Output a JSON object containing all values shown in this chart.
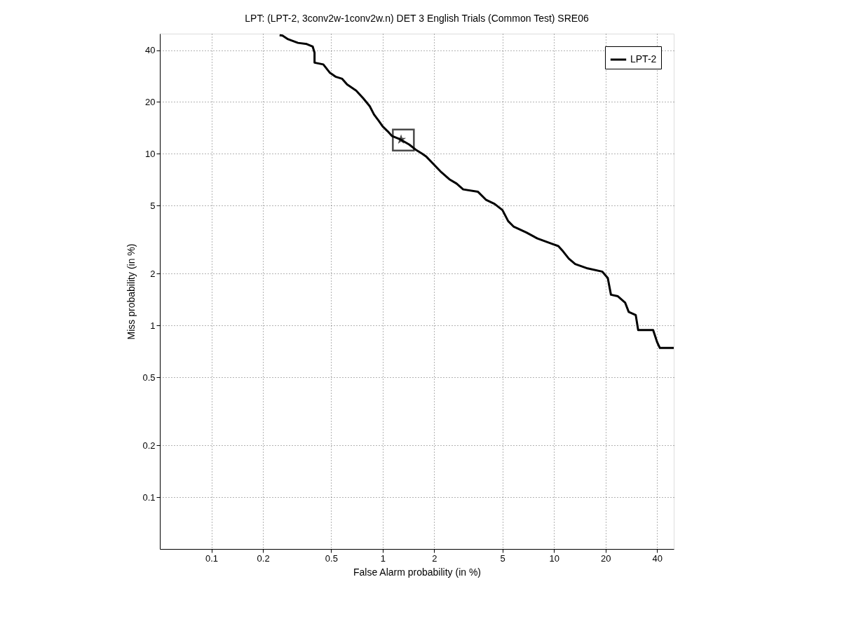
{
  "chart_data": {
    "type": "line",
    "title": "LPT: (LPT-2, 3conv2w-1conv2w.n) DET 3 English Trials (Common Test) SRE06",
    "xlabel": "False Alarm probability (in %)",
    "ylabel": "Miss probability (in %)",
    "xlim": [
      0.05,
      50
    ],
    "ylim": [
      0.05,
      50
    ],
    "xticks": [
      0.1,
      0.2,
      0.5,
      1,
      2,
      5,
      10,
      20,
      40
    ],
    "yticks": [
      0.1,
      0.2,
      0.5,
      1,
      2,
      5,
      10,
      20,
      40
    ],
    "grid": true,
    "legend": "top right",
    "log": "xy",
    "series": [
      {
        "name": "LPT-2",
        "color": "#000000",
        "x": [
          0.25,
          0.26,
          0.28,
          0.32,
          0.36,
          0.39,
          0.4,
          0.4,
          0.45,
          0.49,
          0.53,
          0.58,
          0.62,
          0.7,
          0.77,
          0.84,
          0.89,
          0.95,
          1.0,
          1.07,
          1.13,
          1.27,
          1.43,
          1.57,
          1.7,
          1.8,
          2.0,
          2.2,
          2.45,
          2.7,
          2.95,
          3.6,
          4.0,
          4.5,
          5.0,
          5.4,
          5.8,
          6.9,
          8.0,
          9.7,
          10.6,
          11.3,
          12.2,
          13.3,
          15.7,
          19.1,
          20.6,
          21.5,
          23.6,
          26,
          27.3,
          30,
          31,
          37.9,
          40,
          41.5,
          50
        ],
        "values": [
          49,
          48.7,
          46.4,
          44.2,
          43.5,
          42.1,
          38.7,
          33.9,
          33.1,
          29.7,
          28.1,
          27.3,
          25.3,
          23.3,
          21,
          18.9,
          16.9,
          15.5,
          14.4,
          13.5,
          12.7,
          12.1,
          11.3,
          10.5,
          10,
          9.6,
          8.6,
          7.8,
          7.1,
          6.7,
          6.2,
          6.0,
          5.4,
          5.1,
          4.7,
          4.05,
          3.77,
          3.48,
          3.21,
          2.99,
          2.9,
          2.7,
          2.45,
          2.28,
          2.15,
          2.06,
          1.89,
          1.51,
          1.48,
          1.36,
          1.2,
          1.15,
          0.94,
          0.94,
          0.8,
          0.74,
          0.74
        ]
      },
      {
        "type": "scatter",
        "marker": "star",
        "color": "#000000",
        "x": [
          1.28
        ],
        "values": [
          12.1
        ]
      },
      {
        "type": "scatter",
        "marker": "square",
        "color": "#000000",
        "x": [
          1.32
        ],
        "values": [
          12.0
        ]
      }
    ]
  }
}
